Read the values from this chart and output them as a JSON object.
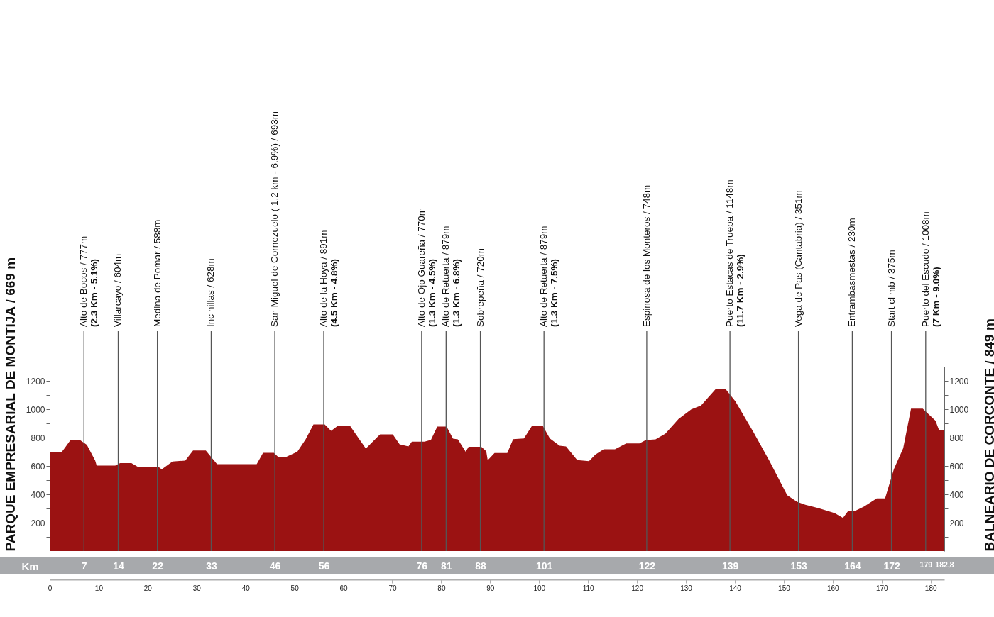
{
  "chart_data": {
    "type": "area",
    "ylabel": "PARQUE EMPRESARIAL DE MONTIJA / 669 m",
    "y2label": "BALNEARIO DE CORCONTE / 849 m",
    "x2label": "Km",
    "x": [
      0,
      2.5,
      3.1,
      4.2,
      6.3,
      7.6,
      9.3,
      9.6,
      13.4,
      14.4,
      16.7,
      18.0,
      22.2,
      22.9,
      25.1,
      27.7,
      29.3,
      31.9,
      34.2,
      42.3,
      43.6,
      45.8,
      46.8,
      48.4,
      50.6,
      52.3,
      53.9,
      56.2,
      57.5,
      58.8,
      61.4,
      64.6,
      67.5,
      70.1,
      71.5,
      73.3,
      74.0,
      76.6,
      77.9,
      79.2,
      81.1,
      82.4,
      83.4,
      85.0,
      85.6,
      88.2,
      89.2,
      89.5,
      90.9,
      93.5,
      94.7,
      96.9,
      98.5,
      100.8,
      102.2,
      104.2,
      105.5,
      107.8,
      110.2,
      111.5,
      113.2,
      115.5,
      117.8,
      120.5,
      121.8,
      123.8,
      125.8,
      128.5,
      131.1,
      133.1,
      136.1,
      138.1,
      140.1,
      143.8,
      147.1,
      150.7,
      152.7,
      154.4,
      157.1,
      160.4,
      162.1,
      163.1,
      164.4,
      166.4,
      169.0,
      170.7,
      172.5,
      174.4,
      176.0,
      178.4,
      181.0,
      181.7,
      182.8
    ],
    "series": [
      {
        "color": "#9b1212",
        "values": [
          700,
          700,
          727,
          780,
          780,
          749,
          638,
          603,
          603,
          620,
          620,
          594,
          594,
          576,
          631,
          638,
          709,
          709,
          612,
          612,
          693,
          693,
          660,
          665,
          700,
          788,
          892,
          892,
          848,
          881,
          881,
          722,
          822,
          822,
          753,
          738,
          771,
          771,
          784,
          877,
          877,
          793,
          788,
          700,
          735,
          735,
          704,
          640,
          691,
          691,
          789,
          794,
          880,
          880,
          794,
          743,
          737,
          641,
          634,
          680,
          718,
          718,
          759,
          759,
          782,
          787,
          828,
          931,
          999,
          1026,
          1143,
          1143,
          1056,
          839,
          634,
          394,
          348,
          326,
          303,
          268,
          234,
          280,
          280,
          314,
          371,
          371,
          577,
          725,
          1004,
          1004,
          919,
          855,
          849
        ]
      }
    ],
    "xlim": [
      0,
      182.8
    ],
    "xticks": [
      0,
      10,
      20,
      30,
      40,
      50,
      60,
      70,
      80,
      90,
      100,
      110,
      120,
      130,
      140,
      150,
      160,
      170,
      180
    ],
    "x2lim": [
      0,
      182.8
    ],
    "x2ticks": [
      7,
      14,
      22,
      33,
      46,
      56,
      76,
      81,
      88,
      101,
      122,
      139,
      153,
      164,
      172,
      179,
      {
        "value": 182.8,
        "label": "182,8"
      }
    ],
    "ylim": [
      0,
      1300
    ],
    "yticks": [
      {
        "value": 100,
        "label": null
      },
      200,
      {
        "value": 300,
        "label": null
      },
      400,
      {
        "value": 500,
        "label": null
      },
      600,
      {
        "value": 700,
        "label": null
      },
      800,
      {
        "value": 900,
        "label": null
      },
      1000,
      {
        "value": 1100,
        "label": null
      },
      1200
    ],
    "y2lim": [
      0,
      1300
    ],
    "y2ticks": [
      {
        "value": 100,
        "label": null
      },
      200,
      {
        "value": 300,
        "label": null
      },
      400,
      {
        "value": 500,
        "label": null
      },
      600,
      {
        "value": 700,
        "label": null
      },
      800,
      {
        "value": 900,
        "label": null
      },
      1000,
      {
        "value": 1100,
        "label": null
      },
      1200
    ],
    "ref_lines": [
      {
        "axis": "x",
        "value": 7,
        "label": "Alto de Bocos / 777m\n(2.3 Km - 5.1%)"
      },
      {
        "axis": "x",
        "value": 14,
        "label": "Villarcayo / 604m"
      },
      {
        "axis": "x",
        "value": 22,
        "label": "Medina de Pomar / 588m"
      },
      {
        "axis": "x",
        "value": 33,
        "label": "Incinillas / 628m"
      },
      {
        "axis": "x",
        "value": 46,
        "label": "San Miguel de Cornezuelo ( 1.2 km - 6.9%) / 693m"
      },
      {
        "axis": "x",
        "value": 56,
        "label": "Alto de la Hoya / 891m\n(4.5 Km - 4.8%)"
      },
      {
        "axis": "x",
        "value": 76,
        "label": "Alto de Ojo Guareña / 770m\n(1.3 Km - 4.5%)"
      },
      {
        "axis": "x",
        "value": 81,
        "label": "Alto de Retuerta / 879m\n(1.3 Km - 6.8%)"
      },
      {
        "axis": "x",
        "value": 88,
        "label": "Sobrepeña / 720m"
      },
      {
        "axis": "x",
        "value": 101,
        "label": "Alto de Retuerta / 879m\n(1.3 Km - 7.5%)"
      },
      {
        "axis": "x",
        "value": 122,
        "label": "Espinosa de los Monteros / 748m"
      },
      {
        "axis": "x",
        "value": 139,
        "label": "Puerto Estacas de Trueba / 1148m\n(11.7 Km - 2.9%)"
      },
      {
        "axis": "x",
        "value": 153,
        "label": "Vega de Pas (Cantabria) / 351m"
      },
      {
        "axis": "x",
        "value": 164,
        "label": "Entrambasmestas / 230m"
      },
      {
        "axis": "x",
        "value": 172,
        "label": "Start climb / 375m"
      },
      {
        "axis": "x",
        "value": 179,
        "label": "Puerto del Escudo / 1008m\n(7 Km - 9.0%)"
      }
    ],
    "grid": false
  }
}
